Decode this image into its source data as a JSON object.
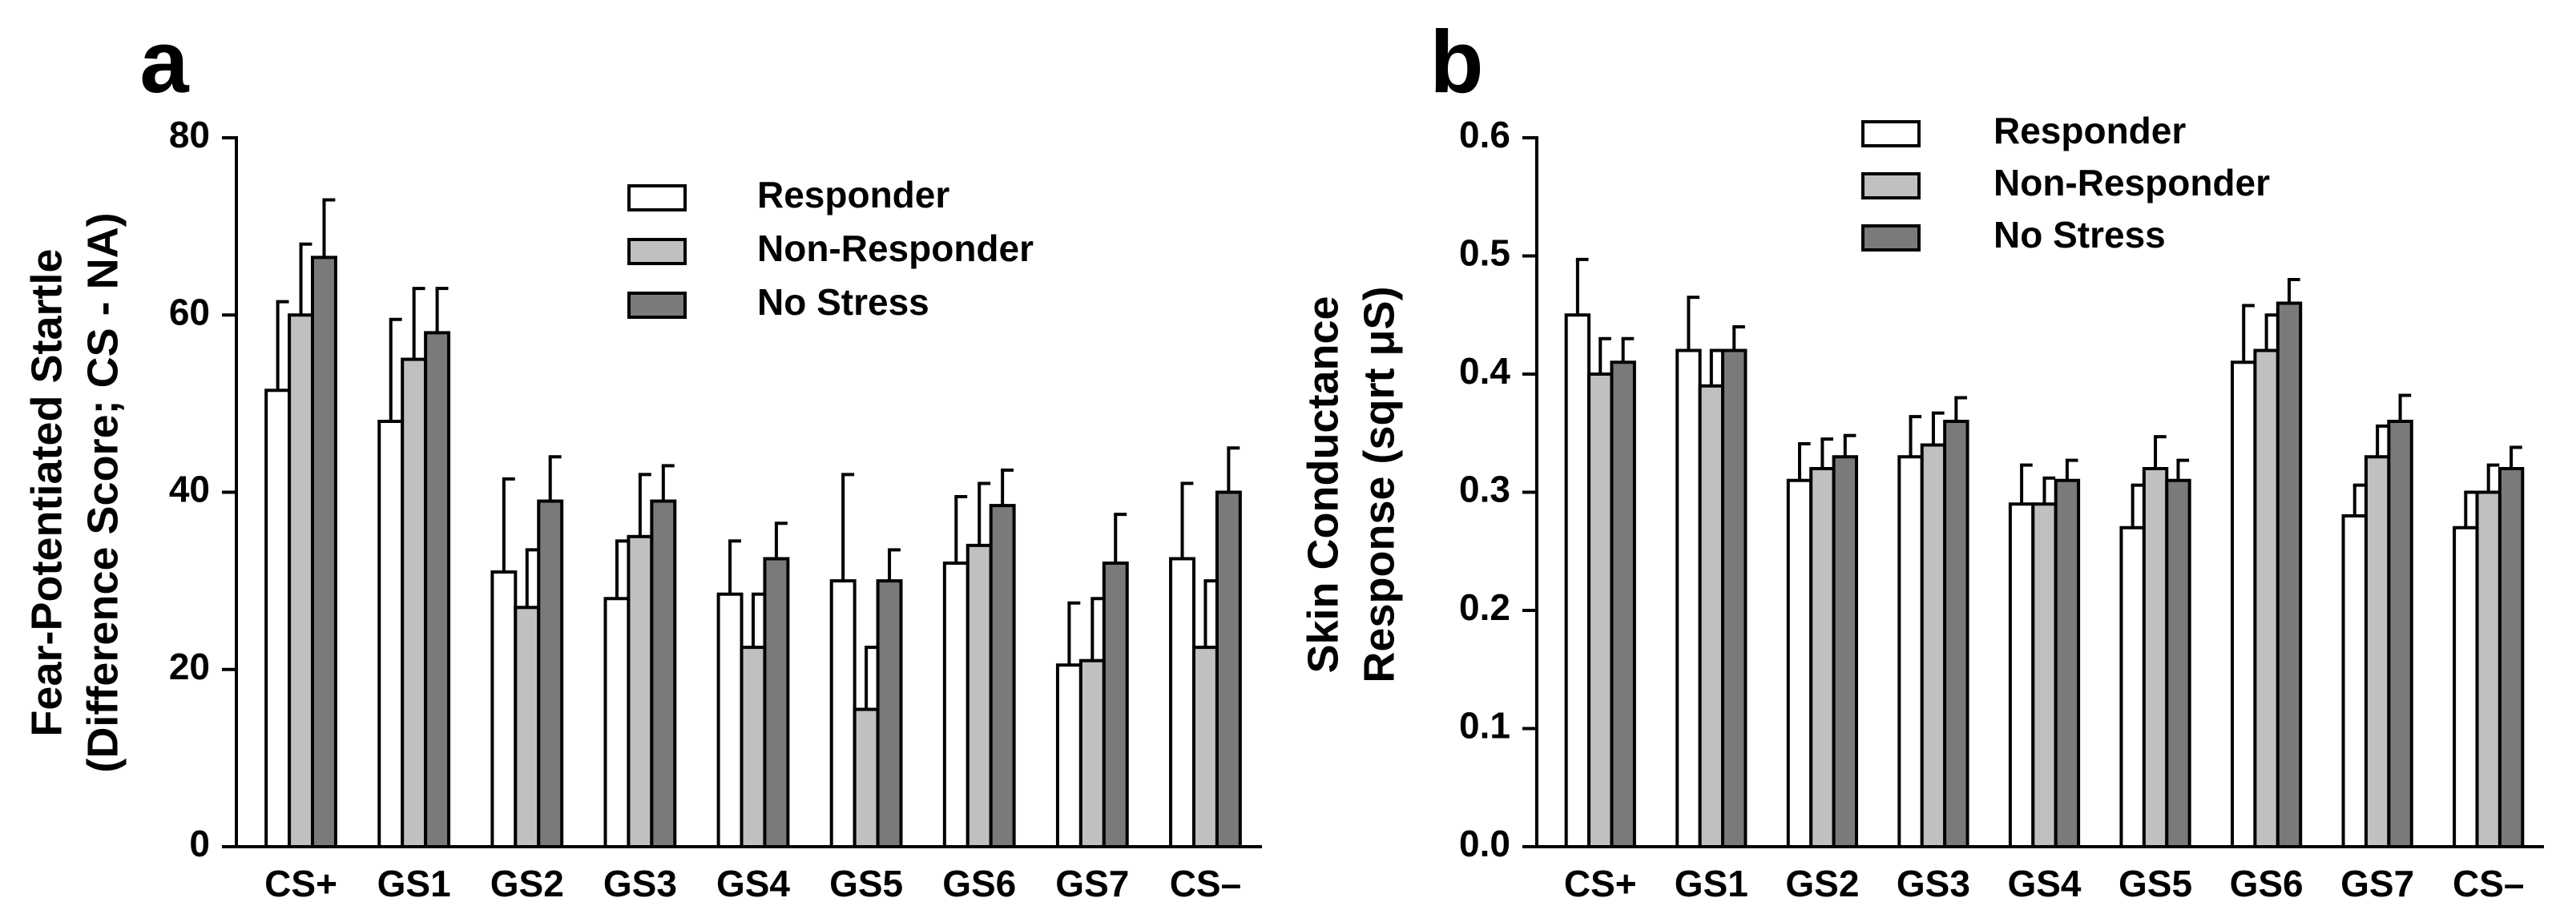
{
  "figure": {
    "panels": [
      "a",
      "b"
    ]
  },
  "chart_data": [
    {
      "type": "bar",
      "panel_label": "a",
      "ylabel_line1": "Fear-Potentiated Startle",
      "ylabel_line2": "(Difference Score; CS - NA)",
      "xlabel": "",
      "ylim": [
        0,
        80
      ],
      "yticks": [
        "0",
        "20",
        "40",
        "60",
        "80"
      ],
      "ytick_values": [
        0,
        20,
        40,
        60,
        80
      ],
      "categories": [
        "CS+",
        "GS1",
        "GS2",
        "GS3",
        "GS4",
        "GS5",
        "GS6",
        "GS7",
        "CS–"
      ],
      "legend_position": "top-right",
      "grid": false,
      "series": [
        {
          "name": "Responder",
          "color": "#ffffff",
          "values": [
            51.5,
            48,
            31,
            28,
            28.5,
            30,
            32,
            20.5,
            32.5
          ],
          "errors": [
            10,
            11.5,
            10.5,
            6.5,
            6,
            12,
            7.5,
            7,
            8.5
          ]
        },
        {
          "name": "Non-Responder",
          "color": "#c0c0c0",
          "values": [
            60,
            55,
            27,
            35,
            22.5,
            15.5,
            34,
            21,
            22.5
          ],
          "errors": [
            8,
            8,
            6.5,
            7,
            6,
            7,
            7,
            7,
            7.5
          ]
        },
        {
          "name": "No Stress",
          "color": "#7a7a7a",
          "values": [
            66.5,
            58,
            39,
            39,
            32.5,
            30,
            38.5,
            32,
            40
          ],
          "errors": [
            6.5,
            5,
            5,
            4,
            4,
            3.5,
            4,
            5.5,
            5
          ]
        }
      ]
    },
    {
      "type": "bar",
      "panel_label": "b",
      "ylabel_line1": "Skin Conductance",
      "ylabel_line2": "Response (sqrt μS)",
      "xlabel": "",
      "ylim": [
        0,
        0.6
      ],
      "yticks": [
        "0.0",
        "0.1",
        "0.2",
        "0.3",
        "0.4",
        "0.5",
        "0.6"
      ],
      "ytick_values": [
        0,
        0.1,
        0.2,
        0.3,
        0.4,
        0.5,
        0.6
      ],
      "categories": [
        "CS+",
        "GS1",
        "GS2",
        "GS3",
        "GS4",
        "GS5",
        "GS6",
        "GS7",
        "CS–"
      ],
      "legend_position": "top-center",
      "grid": false,
      "series": [
        {
          "name": "Responder",
          "color": "#ffffff",
          "values": [
            0.45,
            0.42,
            0.31,
            0.33,
            0.29,
            0.27,
            0.41,
            0.28,
            0.27
          ],
          "errors": [
            0.047,
            0.045,
            0.031,
            0.034,
            0.033,
            0.036,
            0.048,
            0.026,
            0.03
          ]
        },
        {
          "name": "Non-Responder",
          "color": "#c0c0c0",
          "values": [
            0.4,
            0.39,
            0.32,
            0.34,
            0.29,
            0.32,
            0.42,
            0.33,
            0.3
          ],
          "errors": [
            0.03,
            0.03,
            0.025,
            0.027,
            0.022,
            0.027,
            0.03,
            0.026,
            0.023
          ]
        },
        {
          "name": "No Stress",
          "color": "#7a7a7a",
          "values": [
            0.41,
            0.42,
            0.33,
            0.36,
            0.31,
            0.31,
            0.46,
            0.36,
            0.32
          ],
          "errors": [
            0.02,
            0.02,
            0.018,
            0.02,
            0.017,
            0.017,
            0.02,
            0.022,
            0.018
          ]
        }
      ]
    }
  ]
}
